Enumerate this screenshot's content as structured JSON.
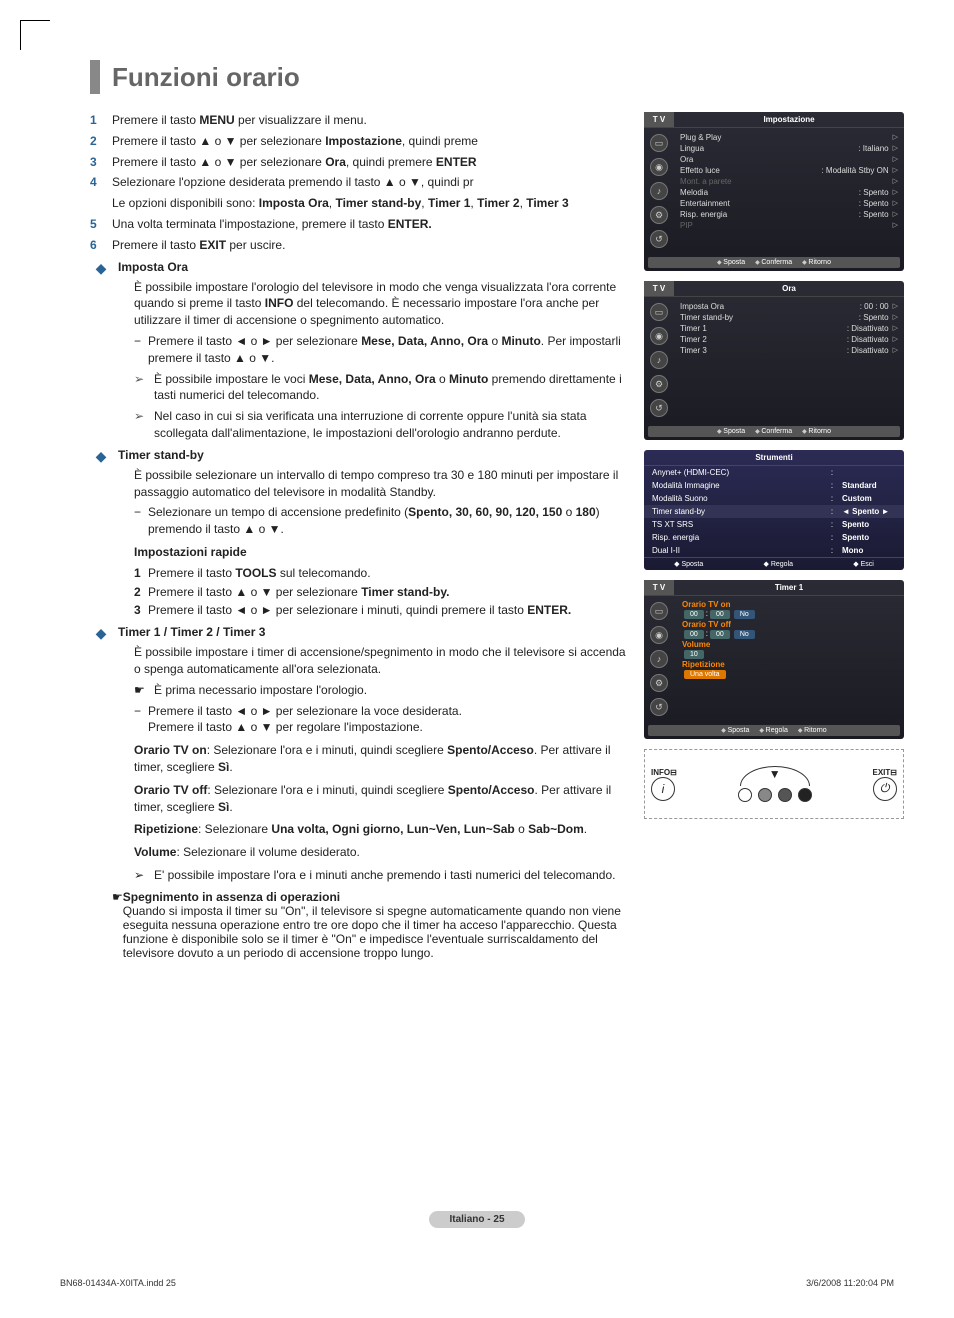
{
  "page": {
    "title": "Funzioni orario",
    "footer_label": "Italiano - 25",
    "doc_ref": "BN68-01434A-X0ITA.indd   25",
    "doc_date": "3/6/2008   11:20:04 PM"
  },
  "steps": [
    {
      "n": "1",
      "text_pre": "Premere il tasto ",
      "bold1": "MENU",
      "text_post": " per visualizzare il menu."
    },
    {
      "n": "2",
      "text_pre": "Premere il tasto ▲ o ▼ per selezionare ",
      "bold1": "Impostazione",
      "text_post": ", quindi preme"
    },
    {
      "n": "3",
      "text_pre": "Premere il tasto ▲ o ▼ per selezionare ",
      "bold1": "Ora",
      "text_post": ", quindi premere ",
      "bold2": "ENTER"
    },
    {
      "n": "4",
      "text_pre": "Selezionare l'opzione desiderata premendo il tasto ▲ o ▼, quindi pr",
      "text_post": ""
    },
    {
      "n": "",
      "text_pre": "Le opzioni disponibili sono: ",
      "bold1": "Imposta Ora",
      "text_mid": ", ",
      "bold2": "Timer stand-by",
      "text_mid2": ", ",
      "bold3": "Timer 1",
      "text_mid3": ", ",
      "bold4": "Timer 2",
      "text_mid4": ", ",
      "bold5": "Timer 3"
    },
    {
      "n": "5",
      "text_pre": "Una volta terminata l'impostazione, premere il tasto ",
      "bold1": "ENTER.",
      "text_post": ""
    },
    {
      "n": "6",
      "text_pre": "Premere il tasto ",
      "bold1": "EXIT",
      "text_post": " per uscire."
    }
  ],
  "sec_imposta": {
    "title": "Imposta Ora",
    "body": "È possibile impostare l'orologio del televisore in modo che venga visualizzata l'ora corrente quando si preme il tasto ",
    "bold_info": "INFO",
    "body2": " del telecomando. È necessario impostare l'ora anche per utilizzare il timer di accensione o spegnimento automatico.",
    "dash1_pre": "Premere il tasto ◄ o ► per selezionare ",
    "dash1_b": "Mese, Data, Anno, Ora",
    "dash1_mid": " o ",
    "dash1_b2": "Minuto",
    "dash1_post": ". Per impostarli premere il tasto ▲ o ▼.",
    "arr1_pre": "È possibile impostare le voci ",
    "arr1_b": "Mese, Data, Anno, Ora",
    "arr1_mid": " o ",
    "arr1_b2": "Minuto",
    "arr1_post": " premendo direttamente i tasti numerici del telecomando.",
    "arr2": "Nel caso in cui si sia verificata una interruzione di corrente oppure l'unità sia stata scollegata dall'alimentazione, le impostazioni dell'orologio andranno perdute."
  },
  "sec_standby": {
    "title": "Timer stand-by",
    "body": "È possibile selezionare un intervallo di tempo compreso tra 30 e 180 minuti per impostare il passaggio automatico del televisore in modalità Standby.",
    "dash_pre": "Selezionare un tempo di accensione predefinito (",
    "dash_b": "Spento, 30, 60, 90, 120, 150",
    "dash_mid": " o ",
    "dash_b2": "180",
    "dash_post": ") premendo il tasto ▲ o ▼.",
    "quick_title": "Impostazioni rapide",
    "q1_pre": "Premere il tasto ",
    "q1_b": "TOOLS",
    "q1_post": " sul telecomando.",
    "q2_pre": "Premere il tasto ▲ o ▼ per selezionare ",
    "q2_b": "Timer stand-by.",
    "q3_pre": "Premere il tasto ◄ o ► per selezionare i minuti, quindi premere il tasto ",
    "q3_b": "ENTER."
  },
  "sec_timer": {
    "title": "Timer 1 / Timer 2 / Timer 3",
    "body": "È possibile impostare i timer di accensione/spegnimento in modo che il televisore si accenda o spenga automaticamente all'ora selezionata.",
    "hand": "È prima necessario impostare l'orologio.",
    "dash1": "Premere il tasto ◄ o ► per selezionare la voce desiderata.",
    "dash2": "Premere il tasto ▲ o ▼ per regolare l'impostazione.",
    "on_pre": "Orario TV on",
    "on_body": ": Selezionare l'ora e i minuti, quindi scegliere ",
    "on_b": "Spento/Acceso",
    "on_post": ". Per attivare il timer, scegliere ",
    "on_b2": "Sì",
    "off_pre": "Orario TV off",
    "off_body": ": Selezionare l'ora e i minuti, quindi scegliere ",
    "off_b": "Spento/Acceso",
    "off_post": ". Per attivare il timer, scegliere ",
    "off_b2": "Sì",
    "rep_pre": "Ripetizione",
    "rep_body": ": Selezionare ",
    "rep_b": "Una volta, Ogni giorno, Lun~Ven, Lun~Sab",
    "rep_mid": " o ",
    "rep_b2": "Sab~Dom",
    "vol_pre": "Volume",
    "vol_body": ": Selezionare il volume desiderato.",
    "arr": "E' possibile impostare l'ora e i minuti anche premendo i tasti numerici del telecomando."
  },
  "sec_spegn": {
    "title": "Spegnimento in assenza di operazioni",
    "body": "Quando si imposta il timer su \"On\", il televisore si spegne automaticamente quando non viene eseguita nessuna operazione entro tre ore dopo che il timer ha acceso l'apparecchio. Questa funzione è disponibile solo se il timer è \"On\" e impedisce l'eventuale surriscaldamento del televisore dovuto a un periodo di accensione troppo lungo."
  },
  "osd1": {
    "title": "Impostazione",
    "rows": [
      {
        "k": "Plug & Play",
        "v": "",
        "tri": "▷"
      },
      {
        "k": "Lingua",
        "v": ": Italiano",
        "tri": "▷"
      },
      {
        "k": "Ora",
        "v": "",
        "tri": "▷"
      },
      {
        "k": "Effetto luce",
        "v": ": Modalità Stby ON",
        "tri": "▷"
      },
      {
        "k": "Mont. a parete",
        "v": "",
        "tri": "▷",
        "dim": true
      },
      {
        "k": "Melodia",
        "v": ": Spento",
        "tri": "▷"
      },
      {
        "k": "Entertainment",
        "v": ": Spento",
        "tri": "▷"
      },
      {
        "k": "Risp. energia",
        "v": ": Spento",
        "tri": "▷"
      },
      {
        "k": "PIP",
        "v": "",
        "tri": "▷",
        "dim": true
      }
    ],
    "foot": [
      "Sposta",
      "Conferma",
      "Ritorno"
    ]
  },
  "osd2": {
    "title": "Ora",
    "rows": [
      {
        "k": "Imposta Ora",
        "v": ": 00 : 00",
        "tri": "▷"
      },
      {
        "k": "Timer stand-by",
        "v": ": Spento",
        "tri": "▷"
      },
      {
        "k": "Timer 1",
        "v": ": Disattivato",
        "tri": "▷"
      },
      {
        "k": "Timer 2",
        "v": ": Disattivato",
        "tri": "▷"
      },
      {
        "k": "Timer 3",
        "v": ": Disattivato",
        "tri": "▷"
      }
    ],
    "foot": [
      "Sposta",
      "Conferma",
      "Ritorno"
    ]
  },
  "osd3": {
    "title": "Strumenti",
    "rows": [
      {
        "k": "Anynet+ (HDMI-CEC)",
        "v": ""
      },
      {
        "k": "Modalità Immagine",
        "v": "Standard"
      },
      {
        "k": "Modalità Suono",
        "v": "Custom"
      },
      {
        "k": "Timer stand-by",
        "v": "Spento",
        "hl": true,
        "arrows": true
      },
      {
        "k": "TS XT SRS",
        "v": "Spento"
      },
      {
        "k": "Risp. energia",
        "v": "Spento"
      },
      {
        "k": "Dual I-II",
        "v": "Mono"
      }
    ],
    "foot": [
      "Sposta",
      "Regola",
      "Esci"
    ]
  },
  "osd4": {
    "title": "Timer 1",
    "on_label": "Orario TV on",
    "on_h": "00",
    "on_m": "00",
    "on_opt": "No",
    "off_label": "Orario TV off",
    "off_h": "00",
    "off_m": "00",
    "off_opt": "No",
    "vol_label": "Volume",
    "vol_val": "10",
    "rep_label": "Ripetizione",
    "rep_val": "Una volta",
    "foot": [
      "Sposta",
      "Regola",
      "Ritorno"
    ]
  },
  "remote": {
    "info": "INFO",
    "exit": "EXIT",
    "dot_colors": [
      "#ffffff",
      "#888888",
      "#555555",
      "#222222"
    ]
  }
}
